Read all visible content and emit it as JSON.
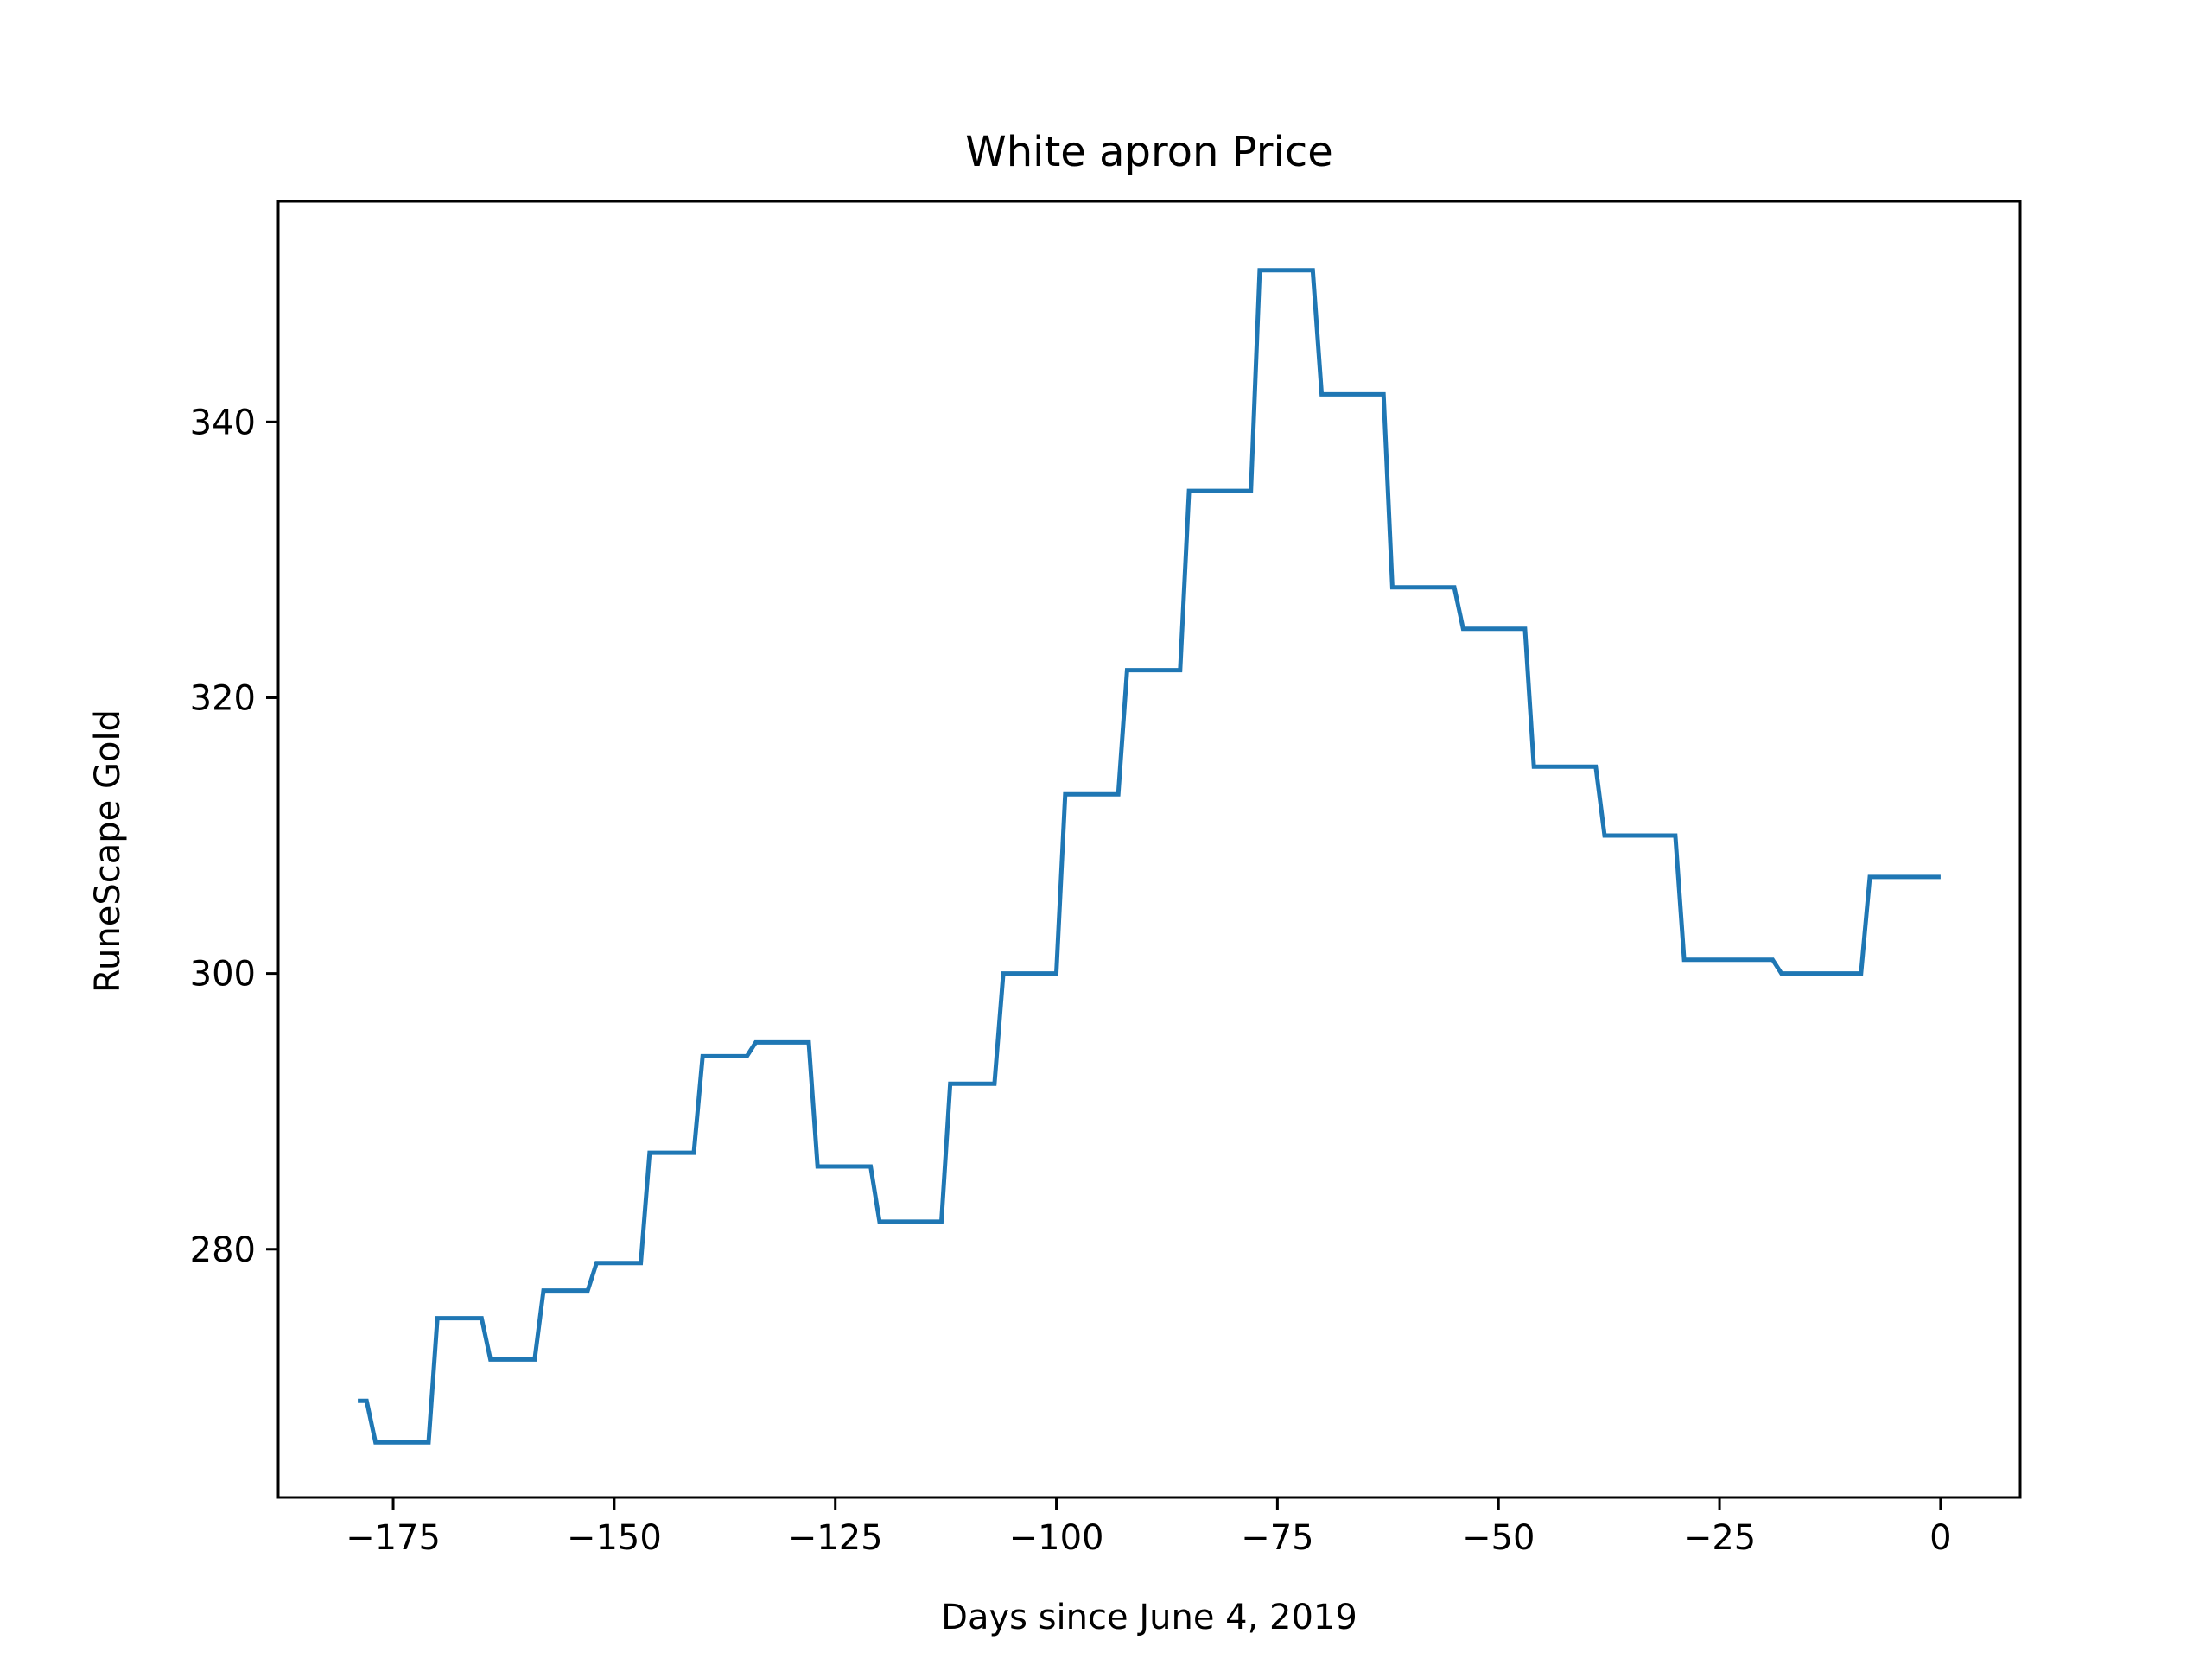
{
  "chart_data": {
    "type": "line",
    "title": "White apron Price",
    "xlabel": "Days since June 4, 2019",
    "ylabel": "RuneScape Gold",
    "xlim": [
      -188,
      9
    ],
    "ylim": [
      262,
      356
    ],
    "xticks": [
      -175,
      -150,
      -125,
      -100,
      -75,
      -50,
      -25,
      0
    ],
    "yticks": [
      280,
      300,
      320,
      340
    ],
    "grid": false,
    "line_color": "#1f77b4",
    "series": [
      {
        "x": [
          -179,
          -178,
          -177,
          -171,
          -170,
          -165,
          -164,
          -159,
          -158,
          -153,
          -152,
          -147,
          -146,
          -141,
          -140,
          -135,
          -134,
          -128,
          -127,
          -121,
          -120,
          -113,
          -112,
          -107,
          -106,
          -100,
          -99,
          -93,
          -92,
          -86,
          -85,
          -78,
          -77,
          -71,
          -70,
          -63,
          -62,
          -55,
          -54,
          -47,
          -46,
          -39,
          -38,
          -30,
          -29,
          -19,
          -18,
          -9,
          -8,
          0
        ],
        "y": [
          269,
          269,
          266,
          266,
          275,
          275,
          272,
          272,
          277,
          277,
          279,
          279,
          287,
          287,
          294,
          294,
          295,
          295,
          286,
          286,
          282,
          282,
          292,
          292,
          300,
          300,
          313,
          313,
          322,
          322,
          335,
          335,
          351,
          351,
          342,
          342,
          328,
          328,
          325,
          325,
          315,
          315,
          310,
          310,
          301,
          301,
          300,
          300,
          307,
          307
        ]
      }
    ]
  }
}
